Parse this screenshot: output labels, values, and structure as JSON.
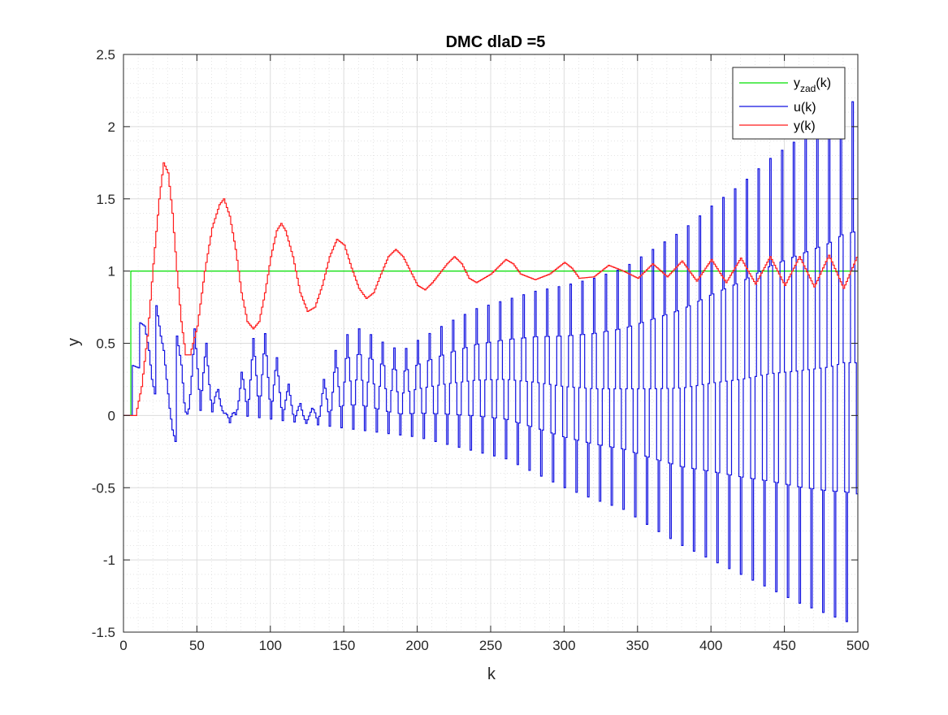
{
  "chart_data": {
    "type": "line",
    "title": "DMC dlaD =5",
    "xlabel": "k",
    "ylabel": "y",
    "xlim": [
      0,
      500
    ],
    "ylim": [
      -1.5,
      2.5
    ],
    "xticks": [
      0,
      50,
      100,
      150,
      200,
      250,
      300,
      350,
      400,
      450,
      500
    ],
    "yticks": [
      -1.5,
      -1,
      -0.5,
      0,
      0.5,
      1,
      1.5,
      2,
      2.5
    ],
    "xtick_labels": [
      "0",
      "50",
      "100",
      "150",
      "200",
      "250",
      "300",
      "350",
      "400",
      "450",
      "500"
    ],
    "ytick_labels": [
      "-1.5",
      "-1",
      "-0.5",
      "0",
      "0.5",
      "1",
      "1.5",
      "2",
      "2.5"
    ],
    "grid": true,
    "minor_grid": true,
    "step_plot": true,
    "legend_position": "top-right",
    "legend": {
      "yzad_main": "y",
      "yzad_sub": "zad",
      "yzad_suffix": "(k)",
      "u": "u(k)",
      "y": "y(k)"
    },
    "series": [
      {
        "name": "yzad(k)",
        "color": "#00e000",
        "description": "step setpoint",
        "points": [
          [
            0,
            0
          ],
          [
            5,
            0
          ],
          [
            5,
            1
          ],
          [
            500,
            1
          ]
        ]
      },
      {
        "name": "u(k)",
        "color": "#1010e0",
        "description": "oscillating control signal with growing envelope",
        "points": [
          [
            0,
            0
          ],
          [
            5,
            0
          ],
          [
            5,
            0.35
          ],
          [
            10,
            0.33
          ],
          [
            10,
            0.65
          ],
          [
            14,
            0.62
          ],
          [
            17,
            0.45
          ],
          [
            19,
            0.25
          ],
          [
            21,
            0.15
          ],
          [
            22,
            0.76
          ],
          [
            25,
            0.55
          ],
          [
            27,
            0.45
          ],
          [
            29,
            0.25
          ],
          [
            31,
            0.05
          ],
          [
            33,
            -0.1
          ],
          [
            35,
            -0.18
          ],
          [
            36,
            0.55
          ],
          [
            39,
            0.35
          ],
          [
            41,
            0.1
          ],
          [
            43,
            -0.1
          ],
          [
            44,
            0.4
          ],
          [
            48,
            0.6
          ],
          [
            52,
            0.62
          ],
          [
            56,
            0.5
          ],
          [
            60,
            0.3
          ],
          [
            64,
            0.18
          ],
          [
            68,
            0.05
          ],
          [
            72,
            -0.05
          ],
          [
            76,
            0.1
          ],
          [
            80,
            0.3
          ],
          [
            86,
            0.5
          ],
          [
            92,
            0.6
          ],
          [
            98,
            0.55
          ],
          [
            104,
            0.4
          ],
          [
            110,
            0.25
          ],
          [
            116,
            0.15
          ],
          [
            122,
            0.05
          ],
          [
            128,
            0.05
          ],
          [
            136,
            0.25
          ],
          [
            144,
            0.45
          ],
          [
            150,
            0.55
          ],
          [
            160,
            0.6
          ],
          [
            170,
            0.55
          ],
          [
            180,
            0.48
          ],
          [
            190,
            0.45
          ],
          [
            200,
            0.52
          ],
          [
            210,
            0.58
          ],
          [
            220,
            0.64
          ],
          [
            240,
            0.74
          ],
          [
            260,
            0.8
          ],
          [
            280,
            0.86
          ],
          [
            300,
            0.9
          ],
          [
            320,
            0.95
          ],
          [
            340,
            1.02
          ],
          [
            360,
            1.15
          ],
          [
            380,
            1.28
          ],
          [
            400,
            1.45
          ],
          [
            420,
            1.6
          ],
          [
            440,
            1.78
          ],
          [
            460,
            1.92
          ],
          [
            480,
            2.05
          ],
          [
            490,
            2.15
          ],
          [
            498,
            2.18
          ]
        ],
        "lower_envelope": [
          [
            200,
            -0.15
          ],
          [
            220,
            -0.2
          ],
          [
            240,
            -0.25
          ],
          [
            260,
            -0.3
          ],
          [
            280,
            -0.4
          ],
          [
            300,
            -0.5
          ],
          [
            320,
            -0.58
          ],
          [
            340,
            -0.65
          ],
          [
            360,
            -0.78
          ],
          [
            380,
            -0.9
          ],
          [
            400,
            -1.0
          ],
          [
            420,
            -1.1
          ],
          [
            440,
            -1.2
          ],
          [
            460,
            -1.3
          ],
          [
            480,
            -1.38
          ],
          [
            498,
            -1.45
          ]
        ]
      },
      {
        "name": "y(k)",
        "color": "#ff1a1a",
        "description": "damped oscillating process output",
        "points": [
          [
            0,
            0
          ],
          [
            8,
            0
          ],
          [
            12,
            0.2
          ],
          [
            16,
            0.55
          ],
          [
            20,
            1.05
          ],
          [
            24,
            1.5
          ],
          [
            27,
            1.75
          ],
          [
            30,
            1.68
          ],
          [
            33,
            1.4
          ],
          [
            36,
            1.0
          ],
          [
            39,
            0.65
          ],
          [
            42,
            0.42
          ],
          [
            45,
            0.42
          ],
          [
            50,
            0.62
          ],
          [
            55,
            1.0
          ],
          [
            60,
            1.3
          ],
          [
            65,
            1.46
          ],
          [
            68,
            1.5
          ],
          [
            72,
            1.38
          ],
          [
            76,
            1.15
          ],
          [
            80,
            0.85
          ],
          [
            84,
            0.65
          ],
          [
            88,
            0.6
          ],
          [
            92,
            0.65
          ],
          [
            96,
            0.85
          ],
          [
            100,
            1.1
          ],
          [
            104,
            1.28
          ],
          [
            107,
            1.33
          ],
          [
            110,
            1.28
          ],
          [
            115,
            1.1
          ],
          [
            120,
            0.85
          ],
          [
            125,
            0.72
          ],
          [
            130,
            0.75
          ],
          [
            135,
            0.9
          ],
          [
            140,
            1.1
          ],
          [
            145,
            1.22
          ],
          [
            150,
            1.18
          ],
          [
            155,
            1.02
          ],
          [
            160,
            0.88
          ],
          [
            165,
            0.81
          ],
          [
            170,
            0.85
          ],
          [
            175,
            0.98
          ],
          [
            180,
            1.1
          ],
          [
            185,
            1.15
          ],
          [
            190,
            1.1
          ],
          [
            195,
            1.0
          ],
          [
            200,
            0.9
          ],
          [
            205,
            0.87
          ],
          [
            210,
            0.92
          ],
          [
            220,
            1.05
          ],
          [
            225,
            1.1
          ],
          [
            230,
            1.05
          ],
          [
            235,
            0.95
          ],
          [
            240,
            0.92
          ],
          [
            250,
            0.98
          ],
          [
            260,
            1.08
          ],
          [
            265,
            1.05
          ],
          [
            270,
            0.98
          ],
          [
            280,
            0.94
          ],
          [
            290,
            0.98
          ],
          [
            300,
            1.06
          ],
          [
            305,
            1.02
          ],
          [
            310,
            0.95
          ],
          [
            320,
            0.96
          ],
          [
            330,
            1.04
          ],
          [
            340,
            1.0
          ],
          [
            350,
            0.95
          ],
          [
            360,
            1.05
          ],
          [
            370,
            0.96
          ],
          [
            380,
            1.07
          ],
          [
            390,
            0.93
          ],
          [
            400,
            1.08
          ],
          [
            410,
            0.92
          ],
          [
            420,
            1.09
          ],
          [
            430,
            0.91
          ],
          [
            440,
            1.1
          ],
          [
            450,
            0.9
          ],
          [
            460,
            1.1
          ],
          [
            470,
            0.89
          ],
          [
            480,
            1.11
          ],
          [
            490,
            0.88
          ],
          [
            500,
            1.12
          ]
        ]
      }
    ]
  }
}
